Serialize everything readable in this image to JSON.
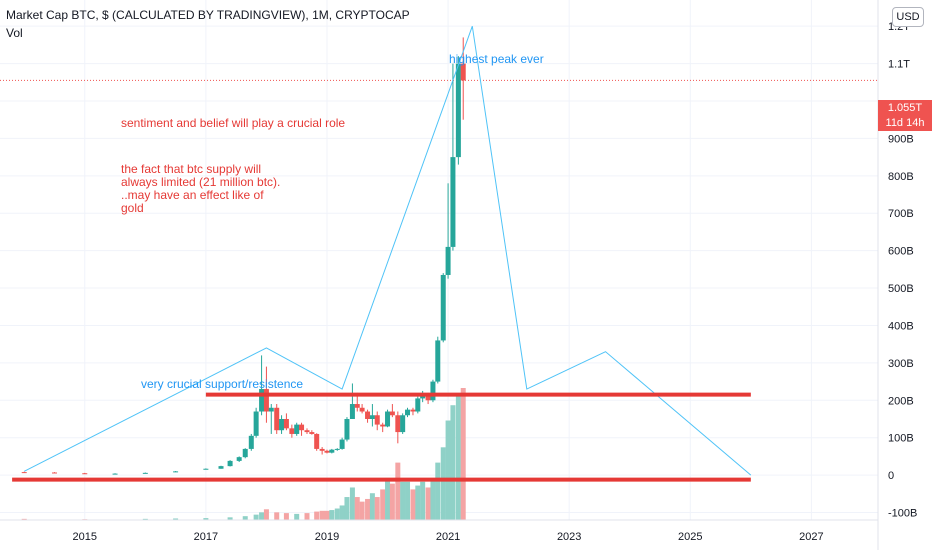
{
  "header": {
    "title": "Market Cap BTC, $ (CALCULATED BY TRADINGVIEW), 1M, CRYPTOCAP",
    "volume_label": "Vol"
  },
  "currency_button": "USD",
  "last_price": {
    "value": "1.055T",
    "countdown": "11d 14h",
    "color": "#ef5350"
  },
  "annotations": {
    "peak": "highest peak ever",
    "sentiment": "sentiment and belief will play a crucial role",
    "supply": "the fact that btc supply will\nalways limited (21 million btc).\n..may have an effect like of\ngold",
    "support": "very crucial support/resistence"
  },
  "colors": {
    "up": "#26a69a",
    "down": "#ef5350",
    "up_volume": "#8fd1c7",
    "down_volume": "#f4a4a4",
    "annotation_blue": "#2196f3",
    "annotation_red": "#e53935",
    "projection_line": "#4fc3f7"
  },
  "chart_data": {
    "type": "candlestick",
    "y_unit": "USD market cap (billions)",
    "ylim": [
      -120,
      1270
    ],
    "yticks": [
      -100,
      0,
      100,
      200,
      300,
      400,
      500,
      600,
      700,
      800,
      900,
      1000,
      1100,
      1200
    ],
    "ytick_labels": [
      "-100B",
      "0",
      "100B",
      "200B",
      "300B",
      "400B",
      "500B",
      "600B",
      "700B",
      "800B",
      "900B",
      "",
      "1.1T",
      "1.2T"
    ],
    "xlim": [
      2013.6,
      2028.1
    ],
    "xticks": [
      2015,
      2017,
      2019,
      2021,
      2023,
      2025,
      2027
    ],
    "xtick_labels": [
      "2015",
      "2017",
      "2019",
      "2021",
      "2023",
      "2025",
      "2027"
    ],
    "current_price": 1055,
    "candles": [
      {
        "t": 2014.0,
        "o": 8,
        "h": 9,
        "l": 6,
        "c": 7
      },
      {
        "t": 2014.5,
        "o": 7,
        "h": 8,
        "l": 5,
        "c": 6
      },
      {
        "t": 2015.0,
        "o": 5,
        "h": 6,
        "l": 3,
        "c": 4
      },
      {
        "t": 2015.5,
        "o": 4,
        "h": 5,
        "l": 3,
        "c": 4
      },
      {
        "t": 2016.0,
        "o": 5,
        "h": 7,
        "l": 5,
        "c": 6
      },
      {
        "t": 2016.5,
        "o": 8,
        "h": 11,
        "l": 8,
        "c": 10
      },
      {
        "t": 2017.0,
        "o": 16,
        "h": 18,
        "l": 15,
        "c": 17
      },
      {
        "t": 2017.25,
        "o": 17,
        "h": 25,
        "l": 17,
        "c": 24
      },
      {
        "t": 2017.4,
        "o": 24,
        "h": 40,
        "l": 23,
        "c": 38
      },
      {
        "t": 2017.55,
        "o": 38,
        "h": 50,
        "l": 35,
        "c": 48
      },
      {
        "t": 2017.65,
        "o": 48,
        "h": 72,
        "l": 45,
        "c": 70
      },
      {
        "t": 2017.75,
        "o": 70,
        "h": 110,
        "l": 65,
        "c": 105
      },
      {
        "t": 2017.83,
        "o": 105,
        "h": 180,
        "l": 100,
        "c": 170
      },
      {
        "t": 2017.92,
        "o": 170,
        "h": 320,
        "l": 160,
        "c": 230
      },
      {
        "t": 2018.0,
        "o": 230,
        "h": 290,
        "l": 140,
        "c": 170
      },
      {
        "t": 2018.08,
        "o": 170,
        "h": 190,
        "l": 110,
        "c": 180
      },
      {
        "t": 2018.17,
        "o": 180,
        "h": 190,
        "l": 110,
        "c": 120
      },
      {
        "t": 2018.25,
        "o": 120,
        "h": 160,
        "l": 110,
        "c": 150
      },
      {
        "t": 2018.33,
        "o": 150,
        "h": 165,
        "l": 120,
        "c": 125
      },
      {
        "t": 2018.42,
        "o": 125,
        "h": 135,
        "l": 100,
        "c": 110
      },
      {
        "t": 2018.5,
        "o": 110,
        "h": 140,
        "l": 105,
        "c": 135
      },
      {
        "t": 2018.58,
        "o": 135,
        "h": 140,
        "l": 105,
        "c": 120
      },
      {
        "t": 2018.67,
        "o": 120,
        "h": 125,
        "l": 110,
        "c": 115
      },
      {
        "t": 2018.75,
        "o": 115,
        "h": 120,
        "l": 108,
        "c": 110
      },
      {
        "t": 2018.83,
        "o": 110,
        "h": 112,
        "l": 65,
        "c": 70
      },
      {
        "t": 2018.92,
        "o": 70,
        "h": 75,
        "l": 55,
        "c": 65
      },
      {
        "t": 2019.0,
        "o": 65,
        "h": 68,
        "l": 58,
        "c": 60
      },
      {
        "t": 2019.08,
        "o": 60,
        "h": 70,
        "l": 58,
        "c": 68
      },
      {
        "t": 2019.17,
        "o": 68,
        "h": 72,
        "l": 65,
        "c": 70
      },
      {
        "t": 2019.25,
        "o": 70,
        "h": 100,
        "l": 68,
        "c": 95
      },
      {
        "t": 2019.33,
        "o": 95,
        "h": 155,
        "l": 90,
        "c": 150
      },
      {
        "t": 2019.42,
        "o": 150,
        "h": 245,
        "l": 150,
        "c": 190
      },
      {
        "t": 2019.5,
        "o": 190,
        "h": 220,
        "l": 170,
        "c": 180
      },
      {
        "t": 2019.58,
        "o": 180,
        "h": 190,
        "l": 165,
        "c": 170
      },
      {
        "t": 2019.67,
        "o": 170,
        "h": 175,
        "l": 140,
        "c": 150
      },
      {
        "t": 2019.75,
        "o": 150,
        "h": 190,
        "l": 130,
        "c": 160
      },
      {
        "t": 2019.83,
        "o": 160,
        "h": 170,
        "l": 120,
        "c": 135
      },
      {
        "t": 2019.92,
        "o": 135,
        "h": 140,
        "l": 115,
        "c": 130
      },
      {
        "t": 2020.0,
        "o": 130,
        "h": 175,
        "l": 128,
        "c": 170
      },
      {
        "t": 2020.08,
        "o": 170,
        "h": 190,
        "l": 155,
        "c": 160
      },
      {
        "t": 2020.17,
        "o": 160,
        "h": 170,
        "l": 85,
        "c": 115
      },
      {
        "t": 2020.25,
        "o": 115,
        "h": 165,
        "l": 110,
        "c": 160
      },
      {
        "t": 2020.33,
        "o": 160,
        "h": 180,
        "l": 155,
        "c": 175
      },
      {
        "t": 2020.42,
        "o": 175,
        "h": 180,
        "l": 160,
        "c": 170
      },
      {
        "t": 2020.5,
        "o": 170,
        "h": 210,
        "l": 165,
        "c": 205
      },
      {
        "t": 2020.58,
        "o": 205,
        "h": 225,
        "l": 195,
        "c": 215
      },
      {
        "t": 2020.67,
        "o": 215,
        "h": 220,
        "l": 190,
        "c": 200
      },
      {
        "t": 2020.75,
        "o": 200,
        "h": 255,
        "l": 195,
        "c": 250
      },
      {
        "t": 2020.83,
        "o": 250,
        "h": 370,
        "l": 245,
        "c": 360
      },
      {
        "t": 2020.92,
        "o": 360,
        "h": 540,
        "l": 355,
        "c": 535
      },
      {
        "t": 2021.0,
        "o": 535,
        "h": 780,
        "l": 525,
        "c": 610
      },
      {
        "t": 2021.08,
        "o": 610,
        "h": 1100,
        "l": 600,
        "c": 850
      },
      {
        "t": 2021.17,
        "o": 850,
        "h": 1120,
        "l": 830,
        "c": 1100
      },
      {
        "t": 2021.25,
        "o": 1100,
        "h": 1170,
        "l": 950,
        "c": 1055
      }
    ],
    "volume": [
      {
        "t": 2014.0,
        "v": 3,
        "up": false
      },
      {
        "t": 2015.0,
        "v": 2,
        "up": false
      },
      {
        "t": 2016.0,
        "v": 3,
        "up": true
      },
      {
        "t": 2016.5,
        "v": 4,
        "up": true
      },
      {
        "t": 2017.0,
        "v": 5,
        "up": true
      },
      {
        "t": 2017.4,
        "v": 7,
        "up": true
      },
      {
        "t": 2017.65,
        "v": 10,
        "up": true
      },
      {
        "t": 2017.83,
        "v": 14,
        "up": true
      },
      {
        "t": 2017.92,
        "v": 20,
        "up": true
      },
      {
        "t": 2018.0,
        "v": 28,
        "up": false
      },
      {
        "t": 2018.17,
        "v": 20,
        "up": false
      },
      {
        "t": 2018.33,
        "v": 18,
        "up": false
      },
      {
        "t": 2018.5,
        "v": 16,
        "up": true
      },
      {
        "t": 2018.67,
        "v": 18,
        "up": false
      },
      {
        "t": 2018.83,
        "v": 22,
        "up": false
      },
      {
        "t": 2018.92,
        "v": 24,
        "up": false
      },
      {
        "t": 2019.0,
        "v": 24,
        "up": false
      },
      {
        "t": 2019.08,
        "v": 26,
        "up": true
      },
      {
        "t": 2019.17,
        "v": 30,
        "up": true
      },
      {
        "t": 2019.25,
        "v": 38,
        "up": true
      },
      {
        "t": 2019.33,
        "v": 60,
        "up": true
      },
      {
        "t": 2019.42,
        "v": 85,
        "up": true
      },
      {
        "t": 2019.5,
        "v": 60,
        "up": false
      },
      {
        "t": 2019.58,
        "v": 48,
        "up": false
      },
      {
        "t": 2019.67,
        "v": 55,
        "up": false
      },
      {
        "t": 2019.75,
        "v": 70,
        "up": true
      },
      {
        "t": 2019.83,
        "v": 60,
        "up": false
      },
      {
        "t": 2019.92,
        "v": 80,
        "up": false
      },
      {
        "t": 2020.0,
        "v": 110,
        "up": true
      },
      {
        "t": 2020.08,
        "v": 95,
        "up": false
      },
      {
        "t": 2020.17,
        "v": 150,
        "up": false
      },
      {
        "t": 2020.25,
        "v": 100,
        "up": true
      },
      {
        "t": 2020.33,
        "v": 100,
        "up": true
      },
      {
        "t": 2020.42,
        "v": 80,
        "up": false
      },
      {
        "t": 2020.5,
        "v": 90,
        "up": true
      },
      {
        "t": 2020.58,
        "v": 100,
        "up": true
      },
      {
        "t": 2020.67,
        "v": 85,
        "up": false
      },
      {
        "t": 2020.75,
        "v": 110,
        "up": true
      },
      {
        "t": 2020.83,
        "v": 150,
        "up": true
      },
      {
        "t": 2020.92,
        "v": 190,
        "up": true
      },
      {
        "t": 2021.0,
        "v": 260,
        "up": true
      },
      {
        "t": 2021.08,
        "v": 300,
        "up": true
      },
      {
        "t": 2021.17,
        "v": 330,
        "up": true
      },
      {
        "t": 2021.25,
        "v": 345,
        "up": false
      }
    ],
    "volume_max_display": 345,
    "horizontal_lines": [
      {
        "y": 215,
        "x1": 2017.0,
        "x2": 2026.0
      },
      {
        "y": -12,
        "x1": 2013.8,
        "x2": 2026.0
      }
    ],
    "projection_path": [
      {
        "x": 2014.0,
        "y": 10
      },
      {
        "x": 2018.0,
        "y": 340
      },
      {
        "x": 2019.25,
        "y": 230
      },
      {
        "x": 2021.4,
        "y": 1200
      },
      {
        "x": 2022.3,
        "y": 230
      },
      {
        "x": 2023.6,
        "y": 330
      },
      {
        "x": 2026.0,
        "y": 0
      }
    ]
  }
}
